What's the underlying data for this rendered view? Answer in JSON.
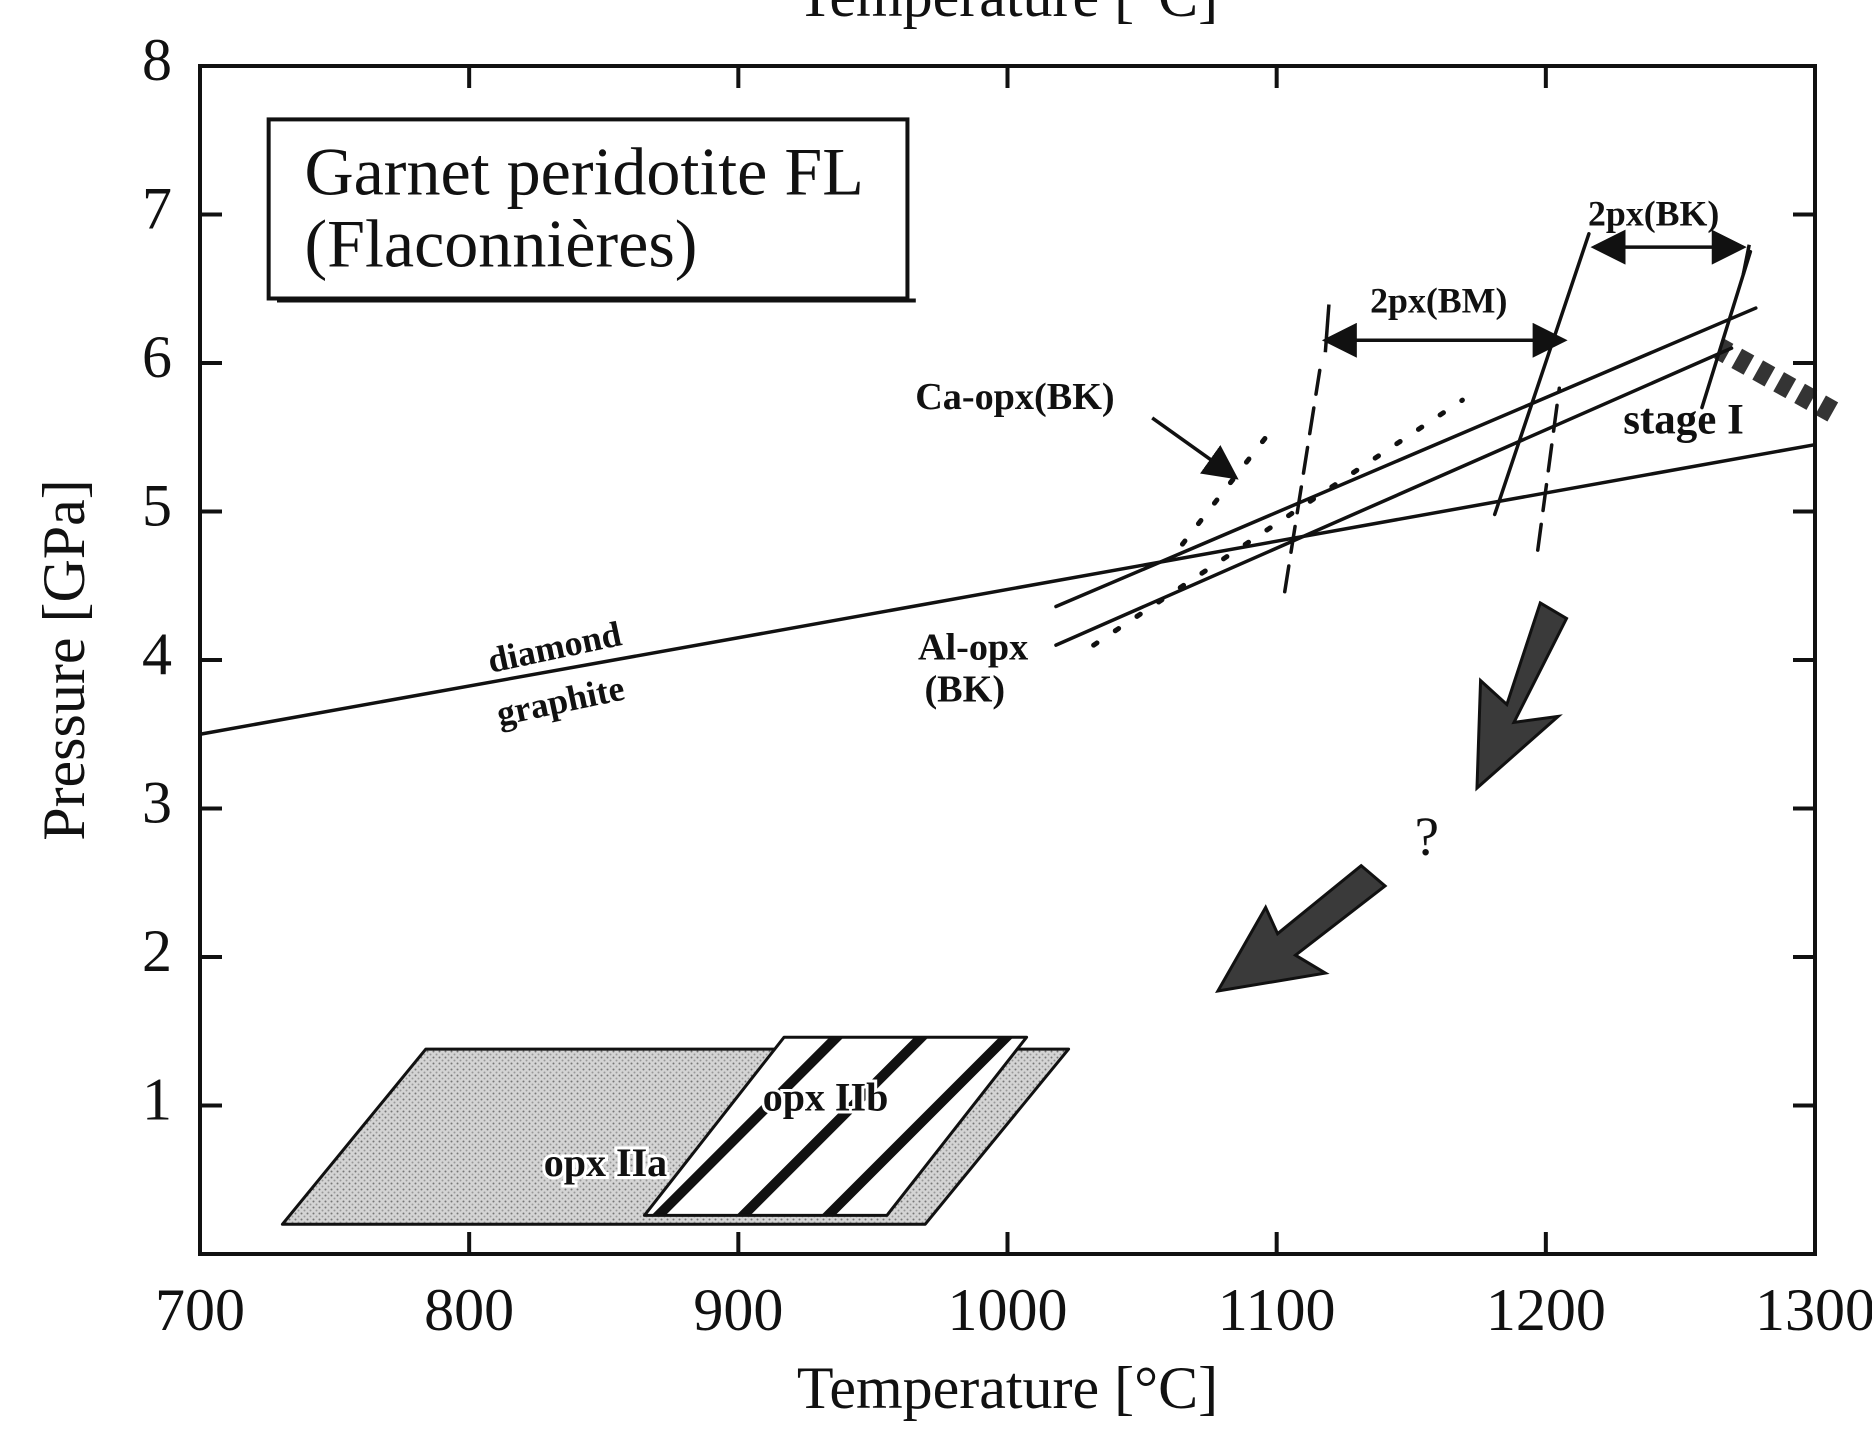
{
  "chart_data": {
    "type": "line",
    "xlabel": "Temperature [°C]",
    "x2label": "Temperature [°C]",
    "ylabel": "Pressure [GPa]",
    "xlim": [
      700,
      1300
    ],
    "ylim": [
      0,
      8
    ],
    "xticks": [
      700,
      800,
      900,
      1000,
      1100,
      1200,
      1300
    ],
    "yticks": [
      1,
      2,
      3,
      4,
      5,
      6,
      7,
      8
    ],
    "color": "#111111",
    "series": [
      {
        "x": [
          700,
          1300
        ],
        "values": [
          3.5,
          5.45
        ],
        "style": "solid",
        "color": "#111111"
      },
      {
        "x": [
          1018,
          1278
        ],
        "values": [
          4.36,
          6.37
        ],
        "style": "solid",
        "color": "#111111"
      },
      {
        "x": [
          1018,
          1269
        ],
        "values": [
          4.1,
          6.1
        ],
        "style": "solid",
        "color": "#111111"
      },
      {
        "x": [
          1032,
          1169
        ],
        "values": [
          4.1,
          5.75
        ],
        "style": "dotted",
        "color": "#111111"
      },
      {
        "x": [
          1065,
          1096
        ],
        "values": [
          4.78,
          5.5
        ],
        "style": "dotted",
        "color": "#111111"
      },
      {
        "x": [
          1103,
          1116
        ],
        "values": [
          4.46,
          5.95
        ],
        "style": "dashed",
        "color": "#111111"
      },
      {
        "x": [
          1197,
          1205
        ],
        "values": [
          4.74,
          5.83
        ],
        "style": "dashed",
        "color": "#111111"
      },
      {
        "x": [
          1181,
          1216
        ],
        "values": [
          4.98,
          6.87
        ],
        "style": "solid",
        "color": "#111111"
      },
      {
        "x": [
          1258,
          1276
        ],
        "values": [
          5.7,
          6.75
        ],
        "style": "solid",
        "color": "#111111"
      }
    ],
    "regions": [
      {
        "name": "opx IIa",
        "x": [
          730.6,
          783.9,
          1022.7,
          969.4
        ],
        "values": [
          0.2,
          1.38,
          1.38,
          0.2
        ],
        "fill": "stipple"
      },
      {
        "name": "opx IIb",
        "x": [
          865.1,
          917.0,
          1007.1,
          955.2
        ],
        "values": [
          0.26,
          1.46,
          1.46,
          0.26
        ],
        "fill": "hatch"
      }
    ],
    "annotations": [
      "Garnet peridotite FL",
      "(Flaconnières)",
      "2px(BK)",
      "2px(BM)",
      "Ca-opx(BK)",
      "stage I",
      "diamond",
      "graphite",
      "Al-opx",
      "(BK)",
      "?"
    ]
  }
}
